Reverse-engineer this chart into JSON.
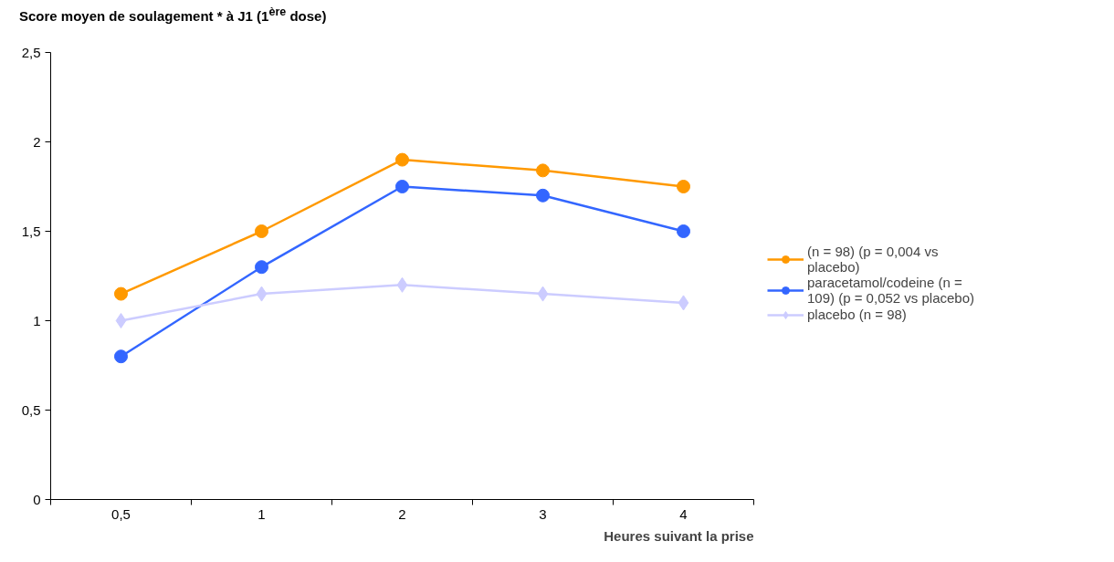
{
  "chart_data": {
    "type": "line",
    "title": "Score moyen de soulagement * à J1 (1$^{ère}$ dose)",
    "xlabel": "Heures suivant la prise",
    "categories": [
      "0,5",
      "1",
      "2",
      "3",
      "4"
    ],
    "series": [
      {
        "name": "(n = 98) (p = 0,004 vs placebo)",
        "color": "#ff9900",
        "marker": "circle",
        "values": [
          1.15,
          1.5,
          1.9,
          1.84,
          1.75
        ]
      },
      {
        "name": "paracetamol/codeine (n = 109) (p = 0,052 vs placebo)",
        "color": "#3366ff",
        "marker": "circle",
        "values": [
          0.8,
          1.3,
          1.75,
          1.7,
          1.5
        ]
      },
      {
        "name": "placebo (n = 98)",
        "color": "#ccccff",
        "marker": "diamond",
        "values": [
          1.0,
          1.15,
          1.2,
          1.15,
          1.1
        ]
      }
    ],
    "ylim": [
      0,
      2.5
    ],
    "yticks": [
      {
        "value": 0,
        "label": "0"
      },
      {
        "value": 0.5,
        "label": "0,5"
      },
      {
        "value": 1,
        "label": "1"
      },
      {
        "value": 1.5,
        "label": "1,5"
      },
      {
        "value": 2,
        "label": "2"
      },
      {
        "value": 2.5,
        "label": "2,5"
      }
    ],
    "grid": false,
    "legend": "right",
    "line_style": "solid"
  }
}
